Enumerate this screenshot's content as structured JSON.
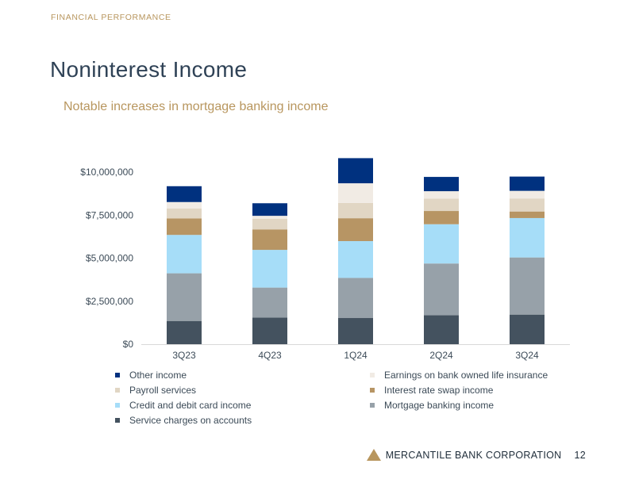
{
  "header": {
    "section_label": "FINANCIAL PERFORMANCE",
    "title": "Noninterest Income",
    "subtitle": "Notable increases in mortgage banking income"
  },
  "chart_data": {
    "type": "bar",
    "stacked": true,
    "categories": [
      "3Q23",
      "4Q23",
      "1Q24",
      "2Q24",
      "3Q24"
    ],
    "ylim": [
      0,
      10000000
    ],
    "yticks": [
      0,
      2500000,
      5000000,
      7500000,
      10000000
    ],
    "ytick_labels": [
      "$0",
      "$2,500,000",
      "$5,000,000",
      "$7,500,000",
      "$10,000,000"
    ],
    "grid": false,
    "legend_position": "bottom",
    "series": [
      {
        "name": "Service charges on accounts",
        "color": "#44525f",
        "values": [
          1350000,
          1550000,
          1520000,
          1680000,
          1720000
        ]
      },
      {
        "name": "Mortgage banking income",
        "color": "#97a1a9",
        "values": [
          2770000,
          1740000,
          2330000,
          3010000,
          3320000
        ]
      },
      {
        "name": "Credit and debit card income",
        "color": "#a6ddf8",
        "values": [
          2230000,
          2190000,
          2140000,
          2280000,
          2290000
        ]
      },
      {
        "name": "Interest rate swap income",
        "color": "#b79564",
        "values": [
          960000,
          1190000,
          1330000,
          770000,
          380000
        ]
      },
      {
        "name": "Payroll services",
        "color": "#e1d6c4",
        "values": [
          570000,
          620000,
          890000,
          720000,
          760000
        ]
      },
      {
        "name": "Earnings on bank owned life insurance",
        "color": "#f1ebe4",
        "values": [
          380000,
          170000,
          1140000,
          430000,
          440000
        ]
      },
      {
        "name": "Other income",
        "color": "#00317f",
        "values": [
          920000,
          730000,
          1460000,
          830000,
          830000
        ]
      }
    ]
  },
  "legend": {
    "items": [
      {
        "label": "Other income",
        "color": "#00317f"
      },
      {
        "label": "Earnings on bank owned life insurance",
        "color": "#f1ebe4"
      },
      {
        "label": "Payroll services",
        "color": "#e1d6c4"
      },
      {
        "label": "Interest rate swap income",
        "color": "#b79564"
      },
      {
        "label": "Credit and debit card income",
        "color": "#a6ddf8"
      },
      {
        "label": "Mortgage banking income",
        "color": "#97a1a9"
      },
      {
        "label": "Service charges on accounts",
        "color": "#44525f"
      }
    ]
  },
  "footer": {
    "company": "MERCANTILE BANK CORPORATION",
    "page_number": "12"
  }
}
